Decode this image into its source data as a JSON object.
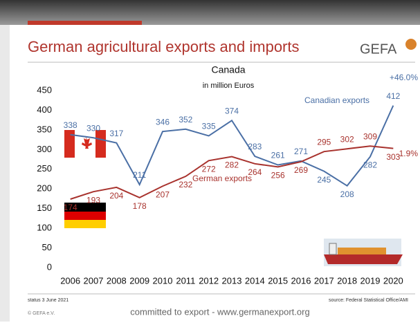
{
  "header": {
    "title": "German agricultural exports and imports",
    "logo": "GEFA"
  },
  "chart_data": {
    "type": "line",
    "title": "Canada",
    "subtitle": "in million Euros",
    "categories": [
      "2006",
      "2007",
      "2008",
      "2009",
      "2010",
      "2011",
      "2012",
      "2013",
      "2014",
      "2015",
      "2016",
      "2017",
      "2018",
      "2019",
      "2020"
    ],
    "series": [
      {
        "name": "Canadian exports",
        "color": "#4a6fa5",
        "values": [
          338,
          330,
          317,
          211,
          346,
          352,
          335,
          374,
          283,
          261,
          271,
          245,
          208,
          282,
          412
        ],
        "change": "+46.0%"
      },
      {
        "name": "German exports",
        "color": "#a8322d",
        "values": [
          174,
          193,
          204,
          178,
          207,
          232,
          272,
          282,
          264,
          256,
          269,
          295,
          302,
          309,
          303
        ],
        "change": "-1.9%"
      }
    ],
    "ylim": [
      0,
      450
    ],
    "yticks": [
      0,
      50,
      100,
      150,
      200,
      250,
      300,
      350,
      400,
      450
    ],
    "grid": false
  },
  "footer": {
    "status": "status 3 June 2021",
    "source": "source: Federal Statistical Office/AMI",
    "copyright": "© GEFA e.V.",
    "slogan": "committed to export - www.germanexport.org"
  }
}
